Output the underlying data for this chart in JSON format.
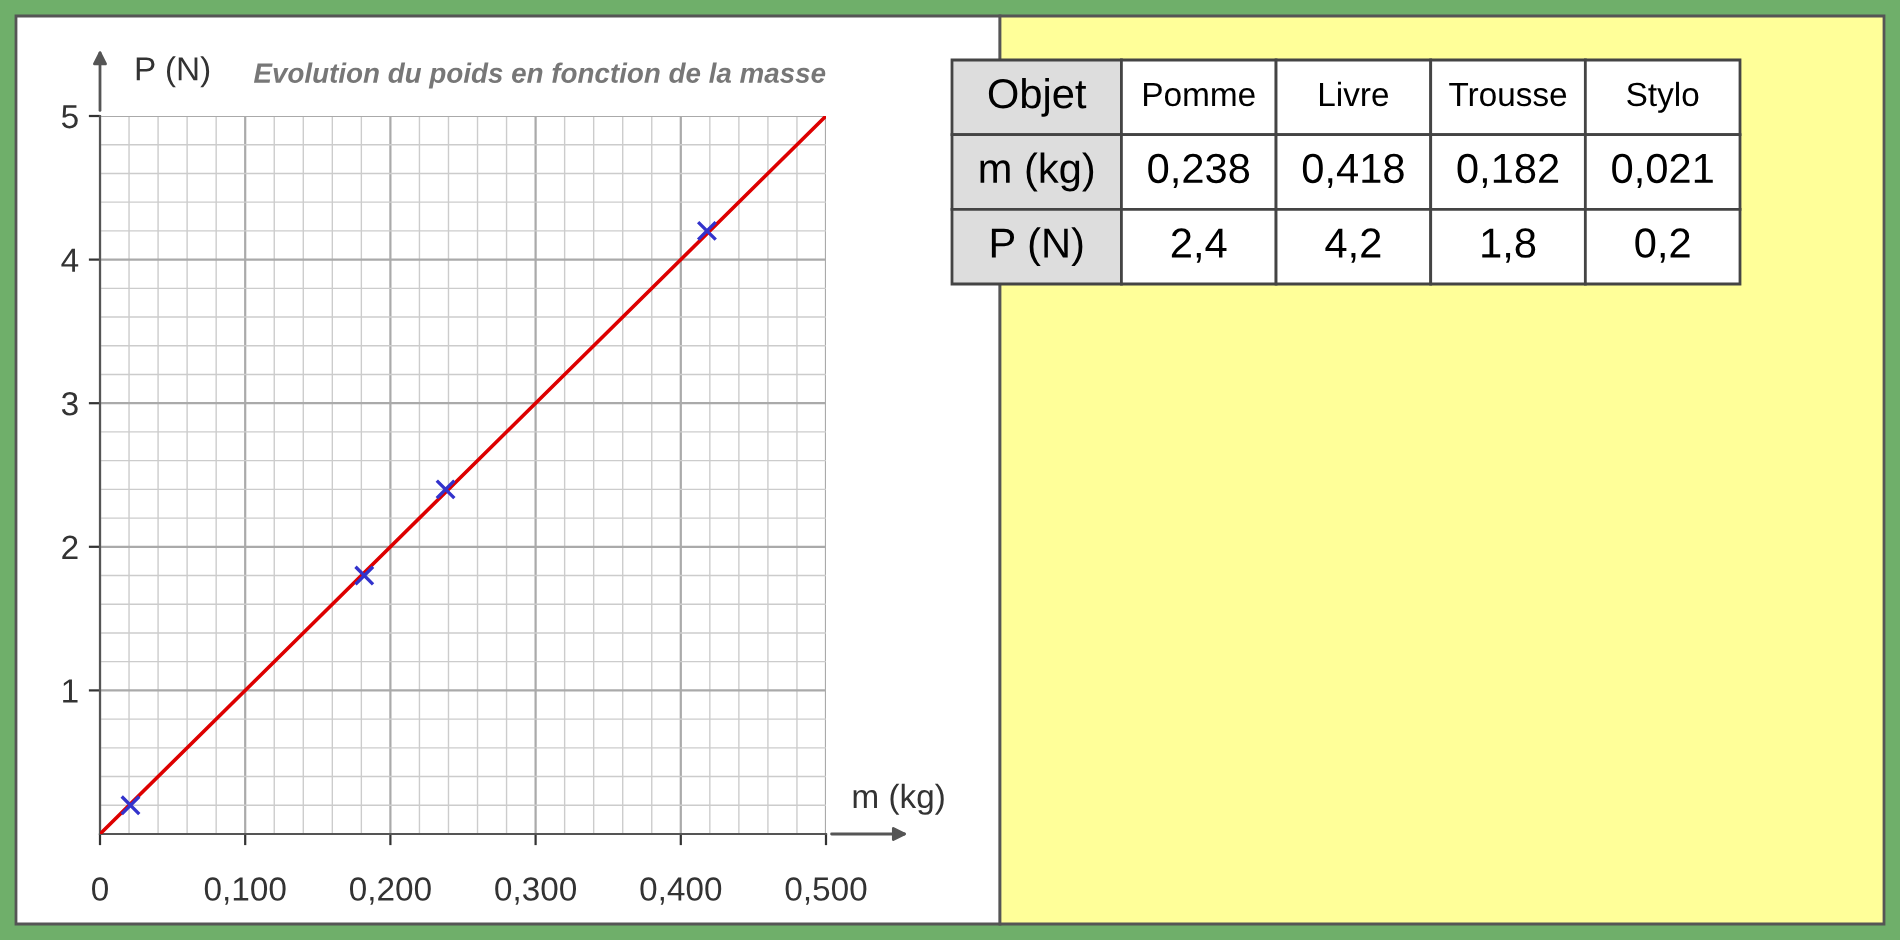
{
  "chart_data": [
    {
      "type": "scatter",
      "title": "Evolution du poids en fonction de la masse",
      "xlabel": "m (kg)",
      "ylabel": "P (N)",
      "series": [
        {
          "type": "scatter",
          "color": "#3333cc",
          "x": [
            0.238,
            0.418,
            0.182,
            0.021
          ],
          "values": [
            2.4,
            4.2,
            1.8,
            0.2
          ],
          "marker": "cross"
        },
        {
          "type": "line",
          "color": "#dd0000",
          "x": [
            0,
            0.5
          ],
          "values": [
            0,
            5
          ],
          "line_style": "solid"
        }
      ],
      "xlim": [
        0,
        0.5
      ],
      "ylim": [
        0,
        5
      ],
      "xticks": [
        {
          "value": 0,
          "label": "0"
        },
        {
          "value": 0.1,
          "label": "0,100"
        },
        {
          "value": 0.2,
          "label": "0,200"
        },
        {
          "value": 0.3,
          "label": "0,300"
        },
        {
          "value": 0.4,
          "label": "0,400"
        },
        {
          "value": 0.5,
          "label": "0,500"
        }
      ],
      "yticks": [
        1,
        2,
        3,
        4,
        5
      ],
      "grid": true
    },
    {
      "type": "other",
      "annotations": [
        "Objet",
        "Pomme",
        "Livre",
        "Trousse",
        "Stylo",
        "m (kg)",
        "0,238",
        "0,418",
        "0,182",
        "0,021",
        "P (N)",
        "2,4",
        "4,2",
        "1,8",
        "0,2"
      ]
    }
  ]
}
